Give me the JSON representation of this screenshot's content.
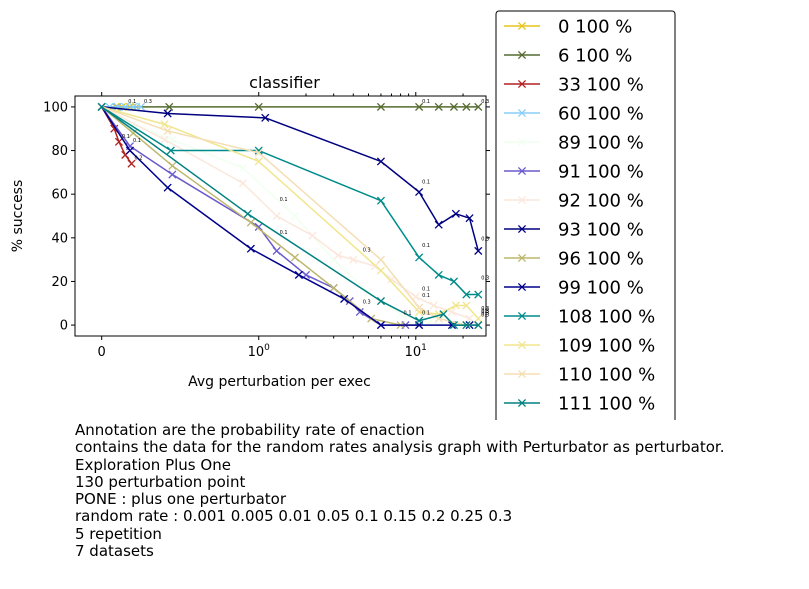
{
  "chart_data": {
    "type": "line",
    "title": "classifier",
    "xlabel": "Avg perturbation per exec",
    "ylabel": "% success",
    "xscale": "symlog",
    "xlim": [
      -0.17,
      28
    ],
    "ylim": [
      -5,
      105
    ],
    "xticks": [
      {
        "value": 0,
        "label": "0"
      },
      {
        "value": 1,
        "label": "10^0"
      },
      {
        "value": 10,
        "label": "10^1"
      }
    ],
    "yticks": [
      0,
      20,
      40,
      60,
      80,
      100
    ],
    "legend_position": "outside-right",
    "series": [
      {
        "name": "0 100 %",
        "color": "#e6c619",
        "points": [
          [
            0,
            100
          ],
          [
            0.09,
            100
          ],
          [
            0.13,
            100
          ],
          [
            0.18,
            100
          ],
          [
            0.22,
            100
          ]
        ],
        "annotations": []
      },
      {
        "name": "6 100 %",
        "color": "#556b2f",
        "points": [
          [
            0,
            100
          ],
          [
            0.1,
            100
          ],
          [
            0.43,
            100
          ],
          [
            1,
            100
          ],
          [
            6,
            100
          ],
          [
            10.5,
            100
          ],
          [
            14,
            100
          ],
          [
            17.5,
            100
          ],
          [
            21,
            100
          ],
          [
            25,
            100
          ]
        ],
        "annotations": [
          {
            "x": 10.5,
            "y": 100,
            "label": "0.1"
          },
          {
            "x": 25,
            "y": 100,
            "label": "0.3"
          }
        ]
      },
      {
        "name": "33 100 %",
        "color": "#b22222",
        "points": [
          [
            0,
            100
          ],
          [
            0.08,
            90
          ],
          [
            0.11,
            84
          ],
          [
            0.15,
            78
          ],
          [
            0.19,
            74
          ]
        ],
        "annotations": [
          {
            "x": 0.11,
            "y": 84,
            "label": "0.1"
          },
          {
            "x": 0.19,
            "y": 74,
            "label": "0.2"
          }
        ]
      },
      {
        "name": "60 100 %",
        "color": "#87cefa",
        "points": [
          [
            0,
            100
          ],
          [
            0.05,
            100
          ],
          [
            0.1,
            100
          ],
          [
            0.15,
            100
          ],
          [
            0.2,
            100
          ],
          [
            0.25,
            100
          ]
        ],
        "annotations": [
          {
            "x": 0.15,
            "y": 100,
            "label": "0.1"
          },
          {
            "x": 0.25,
            "y": 100,
            "label": "0.3"
          }
        ]
      },
      {
        "name": "89 100 %",
        "color": "#f0fff0",
        "points": [
          [
            0,
            100
          ],
          [
            0.2,
            92
          ],
          [
            0.45,
            85
          ],
          [
            0.9,
            72
          ],
          [
            1.7,
            50
          ],
          [
            3,
            30
          ],
          [
            5,
            15
          ],
          [
            8,
            5
          ],
          [
            12,
            1
          ],
          [
            20,
            0
          ]
        ],
        "annotations": []
      },
      {
        "name": "91 100 %",
        "color": "#6a5acd",
        "points": [
          [
            0,
            100
          ],
          [
            0.18,
            82
          ],
          [
            0.45,
            69
          ],
          [
            1,
            45
          ],
          [
            1.3,
            34
          ],
          [
            2,
            23
          ],
          [
            3,
            17
          ],
          [
            3.8,
            11
          ],
          [
            4.4,
            6
          ],
          [
            6,
            0
          ],
          [
            8.6,
            0
          ],
          [
            10.5,
            0
          ]
        ],
        "annotations": [
          {
            "x": 0.18,
            "y": 82,
            "label": "0.1"
          },
          {
            "x": 4.4,
            "y": 8,
            "label": "0.3"
          }
        ]
      },
      {
        "name": "92 100 %",
        "color": "#fbe7db",
        "points": [
          [
            0,
            100
          ],
          [
            0.4,
            85
          ],
          [
            0.9,
            65
          ],
          [
            1.3,
            50
          ],
          [
            2.2,
            41
          ],
          [
            3.2,
            32
          ],
          [
            4,
            30
          ],
          [
            5.5,
            27
          ],
          [
            7,
            21
          ],
          [
            10,
            13
          ],
          [
            13,
            9
          ],
          [
            17,
            6
          ],
          [
            22,
            3
          ],
          [
            25,
            0
          ]
        ],
        "annotations": [
          {
            "x": 1.3,
            "y": 55,
            "label": "0.1"
          },
          {
            "x": 4.4,
            "y": 32,
            "label": "0.3"
          }
        ]
      },
      {
        "name": "93 100 %",
        "color": "#000080",
        "points": [
          [
            0,
            100
          ],
          [
            0.42,
            97
          ],
          [
            1.1,
            95
          ],
          [
            6,
            75
          ],
          [
            10.5,
            61
          ],
          [
            14,
            46
          ],
          [
            18,
            51
          ],
          [
            22,
            49
          ],
          [
            25,
            34
          ]
        ],
        "annotations": [
          {
            "x": 10.5,
            "y": 63,
            "label": "0.1"
          },
          {
            "x": 25,
            "y": 37,
            "label": "0.3"
          }
        ]
      },
      {
        "name": "96 100 %",
        "color": "#bdb76b",
        "points": [
          [
            0,
            100
          ],
          [
            0.2,
            88
          ],
          [
            0.45,
            73
          ],
          [
            0.95,
            47
          ],
          [
            1.7,
            31
          ],
          [
            3,
            17
          ],
          [
            5.2,
            3
          ],
          [
            8,
            0
          ],
          [
            10.5,
            0
          ]
        ],
        "annotations": []
      },
      {
        "name": "99 100 %",
        "color": "#00008b",
        "points": [
          [
            0,
            100
          ],
          [
            0.18,
            80
          ],
          [
            0.42,
            63
          ],
          [
            0.95,
            35
          ],
          [
            1.8,
            23
          ],
          [
            3.5,
            12
          ],
          [
            6,
            0
          ],
          [
            10.5,
            0
          ],
          [
            17,
            0
          ],
          [
            22,
            0
          ],
          [
            25,
            0
          ]
        ],
        "annotations": [
          {
            "x": 1.3,
            "y": 40,
            "label": "0.1"
          },
          {
            "x": 25,
            "y": 4,
            "label": "0.3"
          }
        ]
      },
      {
        "name": "108 100 %",
        "color": "#008b8b",
        "points": [
          [
            0,
            100
          ],
          [
            0.44,
            80
          ],
          [
            1,
            80
          ],
          [
            6,
            57
          ],
          [
            10.5,
            31
          ],
          [
            14,
            23
          ],
          [
            17.5,
            20
          ],
          [
            21,
            14
          ],
          [
            25,
            14
          ]
        ],
        "annotations": [
          {
            "x": 10.5,
            "y": 34,
            "label": "0.1"
          },
          {
            "x": 25,
            "y": 19,
            "label": "0.3"
          }
        ]
      },
      {
        "name": "109 100 %",
        "color": "#f0e68c",
        "points": [
          [
            0,
            100
          ],
          [
            0.4,
            92
          ],
          [
            1,
            75
          ],
          [
            6,
            25
          ],
          [
            10.5,
            6
          ],
          [
            14,
            5
          ],
          [
            18,
            9
          ],
          [
            21,
            9
          ],
          [
            25,
            3
          ]
        ],
        "annotations": [
          {
            "x": 10.5,
            "y": 14,
            "label": "0.1"
          },
          {
            "x": 25,
            "y": 5,
            "label": "0.3"
          }
        ]
      },
      {
        "name": "110 100 %",
        "color": "#f5deb3",
        "points": [
          [
            0,
            100
          ],
          [
            0.42,
            89
          ],
          [
            1,
            79
          ],
          [
            6,
            30
          ],
          [
            10.5,
            8
          ],
          [
            14,
            3
          ],
          [
            21,
            0
          ],
          [
            25,
            0
          ]
        ],
        "annotations": [
          {
            "x": 10.5,
            "y": 11,
            "label": "0.1"
          },
          {
            "x": 25,
            "y": 2,
            "label": "0.3"
          }
        ]
      },
      {
        "name": "111 100 %",
        "color": "#008080",
        "points": [
          [
            0,
            100
          ],
          [
            0.93,
            51
          ],
          [
            6,
            11
          ],
          [
            10.5,
            2
          ],
          [
            15,
            5
          ],
          [
            17.5,
            0
          ],
          [
            21,
            0
          ],
          [
            25,
            0
          ]
        ],
        "annotations": [
          {
            "x": 8,
            "y": 3,
            "label": "0.1"
          },
          {
            "x": 10.5,
            "y": 3,
            "label": "0.1"
          },
          {
            "x": 25,
            "y": 3,
            "label": "0.3"
          }
        ]
      }
    ]
  },
  "caption": [
    "Annotation are the probability rate of enaction",
    "contains the data for the random rates analysis graph with Perturbator as perturbator.",
    "Exploration Plus One",
    "130 perturbation point",
    "PONE : plus one perturbator",
    "random rate : 0.001 0.005 0.01 0.05 0.1 0.15 0.2 0.25 0.3",
    "5 repetition",
    "7 datasets"
  ]
}
